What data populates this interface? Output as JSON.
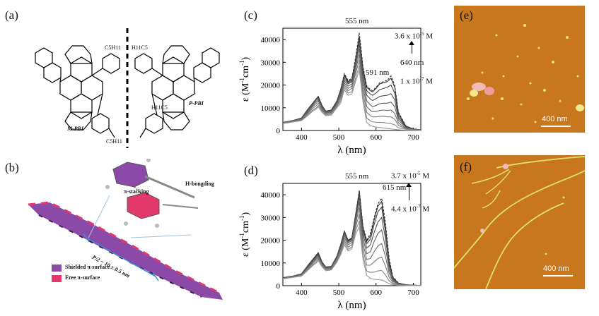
{
  "panels": {
    "a": {
      "label": "(a)",
      "molecule_left": "M-PBI",
      "molecule_right": "P-PBI",
      "sub_left_top": "C5H11",
      "sub_right_top": "H11C5",
      "sub_left_bottom": "C5H11",
      "sub_right_bottom": "H11C5"
    },
    "b": {
      "label": "(b)",
      "pi_stacking": "π-stacking",
      "h_bonding": "H-bongding",
      "pitch": "P/2 ~ 10 ± 0.5 nm",
      "legend_shielded": "Shielded π-surface",
      "legend_free": "Free π-surface",
      "colors": {
        "shielded": "#8b4aa8",
        "free": "#e2386c"
      }
    },
    "c": {
      "label": "(c)",
      "annot_555": "555 nm",
      "annot_640": "640 nm",
      "annot_591": "591 nm",
      "conc_high_base": "3.6 x 10",
      "conc_high_exp": "-5",
      "conc_high_unit": " M",
      "conc_low_base": "1 x 10",
      "conc_low_exp": "-7",
      "conc_low_unit": " M"
    },
    "d": {
      "label": "(d)",
      "annot_555": "555 nm",
      "annot_615": "615 nm",
      "conc_high_base": "3.7 x 10",
      "conc_high_exp": "-5",
      "conc_high_unit": " M",
      "conc_low_base": "4.4 x 10",
      "conc_low_exp": "-7",
      "conc_low_unit": " M"
    },
    "e": {
      "label": "(e)",
      "scale": "400 nm",
      "bg_color": "#c8771f"
    },
    "f": {
      "label": "(f)",
      "scale": "400 nm",
      "bg_color": "#c8771f"
    }
  },
  "chart_data": [
    {
      "type": "line",
      "panel": "c",
      "xlabel": "λ (nm)",
      "ylabel_main": "ε (M",
      "ylabel_exp1": "-1",
      "ylabel_mid": "cm",
      "ylabel_exp2": "-1",
      "ylabel_end": ")",
      "xlim": [
        350,
        720
      ],
      "ylim": [
        0,
        45000
      ],
      "xticks": [
        400,
        500,
        600,
        700
      ],
      "yticks": [
        0,
        10000,
        20000,
        30000,
        40000
      ],
      "xtick_labels": [
        "400",
        "500",
        "600",
        "700"
      ],
      "ytick_labels": [
        "0",
        "10000",
        "20000",
        "30000",
        "40000"
      ],
      "x": [
        350,
        380,
        400,
        420,
        430,
        440,
        445,
        455,
        465,
        480,
        495,
        505,
        515,
        525,
        535,
        545,
        555,
        565,
        575,
        585,
        591,
        600,
        610,
        620,
        630,
        640,
        650,
        660,
        680,
        700,
        720
      ],
      "series": [
        {
          "values": [
            3500,
            4500,
            5500,
            10000,
            12000,
            14000,
            15000,
            11000,
            8500,
            9000,
            13000,
            18000,
            25000,
            22000,
            23000,
            32000,
            43000,
            28000,
            19500,
            18000,
            17500,
            19000,
            21000,
            21500,
            22000,
            24000,
            20000,
            8000,
            2000,
            700,
            300
          ]
        },
        {
          "values": [
            3500,
            4500,
            5500,
            10000,
            12000,
            14000,
            15000,
            11000,
            8500,
            9000,
            13000,
            18000,
            24500,
            21500,
            22500,
            31000,
            41500,
            27000,
            19000,
            17500,
            17000,
            18500,
            20500,
            21000,
            21500,
            23000,
            19000,
            7500,
            1900,
            700,
            300
          ]
        },
        {
          "values": [
            3500,
            4500,
            5500,
            10000,
            12000,
            14000,
            14500,
            11000,
            8500,
            9000,
            13000,
            18000,
            24000,
            21000,
            22000,
            30500,
            40000,
            26000,
            17500,
            16000,
            15500,
            16500,
            18000,
            18500,
            19000,
            20000,
            16500,
            6500,
            1700,
            600,
            300
          ]
        },
        {
          "values": [
            3500,
            4400,
            5300,
            9500,
            11500,
            13500,
            14000,
            10500,
            8200,
            8700,
            12500,
            17000,
            23000,
            20500,
            21500,
            29500,
            38000,
            24000,
            15500,
            13800,
            13200,
            14000,
            15000,
            15300,
            15500,
            16200,
            13500,
            5500,
            1500,
            600,
            300
          ]
        },
        {
          "values": [
            3400,
            4300,
            5100,
            9000,
            11000,
            12800,
            13500,
            10000,
            7900,
            8300,
            12000,
            16000,
            22000,
            19500,
            20500,
            28000,
            36000,
            22000,
            13000,
            11200,
            10500,
            11000,
            11800,
            12000,
            12000,
            12500,
            10500,
            4500,
            1300,
            500,
            300
          ]
        },
        {
          "values": [
            3300,
            4200,
            4900,
            8500,
            10500,
            12000,
            13000,
            9500,
            7600,
            8000,
            11500,
            15000,
            21000,
            18500,
            19500,
            26500,
            33500,
            19500,
            10500,
            8800,
            8200,
            8400,
            8800,
            9000,
            8800,
            9000,
            7500,
            3300,
            1000,
            400,
            200
          ]
        },
        {
          "values": [
            3200,
            4000,
            4700,
            8000,
            9800,
            11000,
            12000,
            9000,
            7200,
            7600,
            11000,
            14000,
            20000,
            17500,
            18500,
            25000,
            31000,
            17000,
            8000,
            6500,
            6000,
            6000,
            6200,
            6300,
            6000,
            6000,
            5000,
            2300,
            800,
            300,
            200
          ]
        },
        {
          "values": [
            3100,
            3900,
            4500,
            7500,
            9000,
            10000,
            11000,
            8500,
            6800,
            7200,
            10500,
            13000,
            19000,
            16500,
            17000,
            23000,
            28500,
            14500,
            5500,
            4200,
            3800,
            3600,
            3600,
            3500,
            3200,
            3000,
            2500,
            1200,
            500,
            200,
            100
          ]
        },
        {
          "values": [
            3000,
            3800,
            4300,
            7000,
            8500,
            9500,
            10500,
            8000,
            6500,
            6800,
            10000,
            12000,
            18000,
            15500,
            16000,
            21500,
            26500,
            12500,
            3500,
            2200,
            1800,
            1500,
            1300,
            1100,
            900,
            700,
            500,
            300,
            150,
            100,
            50
          ]
        }
      ]
    },
    {
      "type": "line",
      "panel": "d",
      "xlabel": "λ (nm)",
      "ylabel_main": "ε (M",
      "ylabel_exp1": "-1",
      "ylabel_mid": "cm",
      "ylabel_exp2": "-1",
      "ylabel_end": ")",
      "xlim": [
        350,
        720
      ],
      "ylim": [
        0,
        45000
      ],
      "xticks": [
        400,
        500,
        600,
        700
      ],
      "yticks": [
        0,
        10000,
        20000,
        30000,
        40000
      ],
      "xtick_labels": [
        "400",
        "500",
        "600",
        "700"
      ],
      "ytick_labels": [
        "0",
        "10000",
        "20000",
        "30000",
        "40000"
      ],
      "x": [
        350,
        380,
        400,
        420,
        430,
        440,
        445,
        455,
        465,
        480,
        495,
        505,
        515,
        525,
        535,
        545,
        555,
        565,
        575,
        585,
        595,
        605,
        615,
        625,
        635,
        645,
        660,
        680,
        700,
        720
      ],
      "series": [
        {
          "values": [
            3500,
            4300,
            5200,
            9500,
            11500,
            13500,
            14500,
            10500,
            8200,
            8500,
            13000,
            18000,
            24000,
            20000,
            21000,
            31000,
            42000,
            26000,
            20000,
            23000,
            30000,
            36000,
            38500,
            28000,
            12000,
            4000,
            1200,
            400,
            200,
            100
          ]
        },
        {
          "values": [
            3500,
            4300,
            5200,
            9500,
            11500,
            13500,
            14500,
            10500,
            8200,
            8500,
            13000,
            18000,
            24000,
            20000,
            21000,
            31000,
            41500,
            25500,
            19500,
            22000,
            29000,
            35000,
            37000,
            26000,
            11000,
            3600,
            1100,
            400,
            200,
            100
          ]
        },
        {
          "values": [
            3500,
            4300,
            5100,
            9300,
            11200,
            13200,
            14000,
            10300,
            8100,
            8400,
            12800,
            17500,
            23500,
            19700,
            20700,
            30500,
            40500,
            24500,
            18500,
            20500,
            27000,
            32500,
            34500,
            24000,
            10000,
            3300,
            1000,
            350,
            200,
            100
          ]
        },
        {
          "values": [
            3400,
            4200,
            5000,
            9000,
            11000,
            12800,
            13500,
            10000,
            8000,
            8300,
            12500,
            17000,
            23000,
            19300,
            20300,
            29500,
            39000,
            23000,
            16500,
            18000,
            23500,
            28000,
            30000,
            21000,
            8800,
            2900,
            900,
            300,
            150,
            100
          ]
        },
        {
          "values": [
            3300,
            4100,
            4900,
            8700,
            10600,
            12300,
            13000,
            9700,
            7800,
            8100,
            12200,
            16500,
            22000,
            18800,
            19800,
            28500,
            37000,
            21000,
            14000,
            15000,
            19500,
            23000,
            24500,
            17000,
            7200,
            2400,
            750,
            250,
            120,
            80
          ]
        },
        {
          "values": [
            3200,
            4000,
            4700,
            8300,
            10200,
            11800,
            12500,
            9400,
            7500,
            7800,
            11800,
            15800,
            21000,
            18000,
            19000,
            27000,
            34500,
            18500,
            11500,
            12000,
            15000,
            17500,
            18500,
            13000,
            5500,
            1900,
            600,
            200,
            100,
            60
          ]
        },
        {
          "values": [
            3100,
            3900,
            4500,
            7900,
            9700,
            11200,
            12000,
            9000,
            7200,
            7500,
            11300,
            15000,
            20000,
            17000,
            18000,
            25500,
            31500,
            16000,
            9000,
            9000,
            10500,
            12000,
            12500,
            8800,
            3800,
            1300,
            400,
            150,
            80,
            50
          ]
        },
        {
          "values": [
            3000,
            3800,
            4300,
            7500,
            9200,
            10500,
            11500,
            8600,
            6900,
            7200,
            10800,
            14200,
            19000,
            16000,
            17000,
            24000,
            28500,
            13500,
            6500,
            5800,
            6000,
            6500,
            6700,
            4800,
            2100,
            800,
            250,
            100,
            60,
            40
          ]
        },
        {
          "values": [
            3000,
            3700,
            4200,
            7200,
            8800,
            10000,
            11000,
            8300,
            6600,
            6900,
            10300,
            13500,
            18000,
            15200,
            16200,
            22500,
            26000,
            11500,
            4500,
            3200,
            2800,
            2600,
            2500,
            1800,
            900,
            400,
            150,
            80,
            50,
            30
          ]
        }
      ]
    }
  ]
}
